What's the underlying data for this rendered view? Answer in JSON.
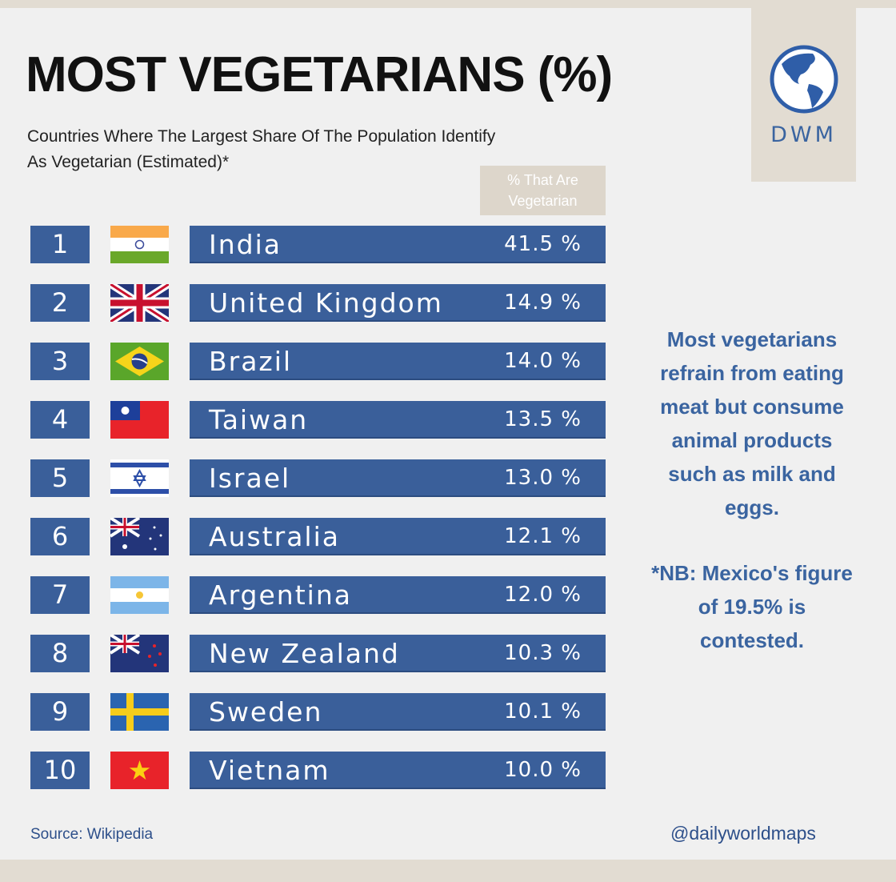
{
  "title": "MOST VEGETARIANS (%)",
  "subtitle_line1": "Countries Where The Largest Share Of The Population Identify",
  "subtitle_line2": "As Vegetarian (Estimated)*",
  "column_header_line1": "% That Are",
  "column_header_line2": "Vegetarian",
  "logo_text": "DWM",
  "colors": {
    "bar": "#3a5f9a",
    "accent_text": "#3a64a0",
    "beige": "#e2dcd2"
  },
  "rows": [
    {
      "rank": "1",
      "country": "India",
      "value": "41.5 %",
      "flag": "india-flag"
    },
    {
      "rank": "2",
      "country": "United Kingdom",
      "value": "14.9 %",
      "flag": "uk-flag"
    },
    {
      "rank": "3",
      "country": "Brazil",
      "value": "14.0 %",
      "flag": "brazil-flag"
    },
    {
      "rank": "4",
      "country": "Taiwan",
      "value": "13.5 %",
      "flag": "taiwan-flag"
    },
    {
      "rank": "5",
      "country": "Israel",
      "value": "13.0 %",
      "flag": "israel-flag"
    },
    {
      "rank": "6",
      "country": "Australia",
      "value": "12.1 %",
      "flag": "australia-flag"
    },
    {
      "rank": "7",
      "country": "Argentina",
      "value": "12.0 %",
      "flag": "argentina-flag"
    },
    {
      "rank": "8",
      "country": "New Zealand",
      "value": "10.3 %",
      "flag": "new-zealand-flag"
    },
    {
      "rank": "9",
      "country": "Sweden",
      "value": "10.1 %",
      "flag": "sweden-flag"
    },
    {
      "rank": "10",
      "country": "Vietnam",
      "value": "10.0 %",
      "flag": "vietnam-flag"
    }
  ],
  "note1": [
    "Most vegetarians",
    "refrain from eating",
    "meat but consume",
    "animal products",
    "such as milk and",
    "eggs."
  ],
  "note2": [
    "*NB: Mexico's figure",
    "of 19.5% is",
    "contested."
  ],
  "source": "Source: Wikipedia",
  "handle": "@dailyworldmaps"
}
